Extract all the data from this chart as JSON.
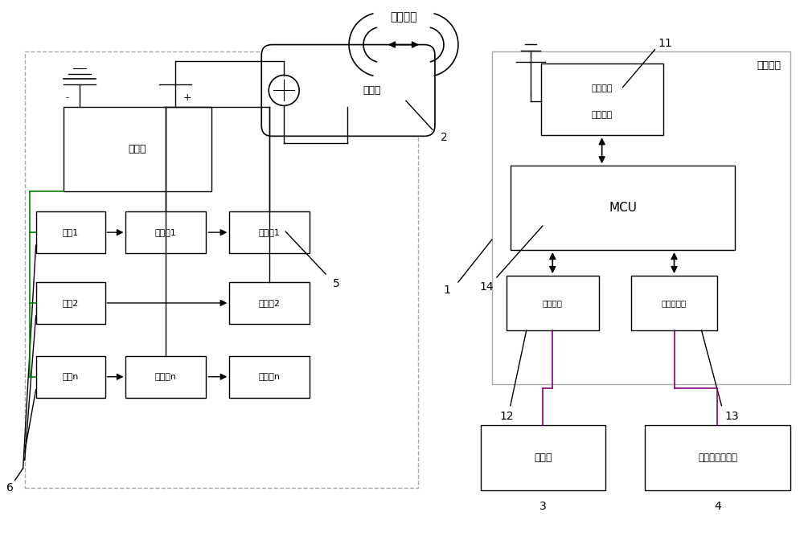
{
  "bg_color": "#ffffff",
  "black": "#000000",
  "green": "#008000",
  "purple": "#800080",
  "wireless_label": "无线通信",
  "battery_label": "蓄电池",
  "clamp_label": "电流钓",
  "switch1_label": "开关1",
  "ctrl1_label": "控制器1",
  "exec1_label": "执行器1",
  "switch2_label": "开关2",
  "exec2_label": "执行器2",
  "switchn_label": "开关n",
  "ctrln_label": "控制器n",
  "execn_label": "执行器n",
  "mcu_label": "MCU",
  "display_iface_label": "显示接口",
  "eth_iface_label": "以太网接口",
  "wireless_module_line1": "第一无线",
  "wireless_module_line2": "通信模块",
  "test_host_label": "测试主机",
  "display_label": "显示器",
  "storage_label": "数据存储服务器",
  "num1": "1",
  "num2": "2",
  "num3": "3",
  "num4": "4",
  "num5": "5",
  "num6": "6",
  "num11": "11",
  "num12": "12",
  "num13": "13",
  "num14": "14"
}
